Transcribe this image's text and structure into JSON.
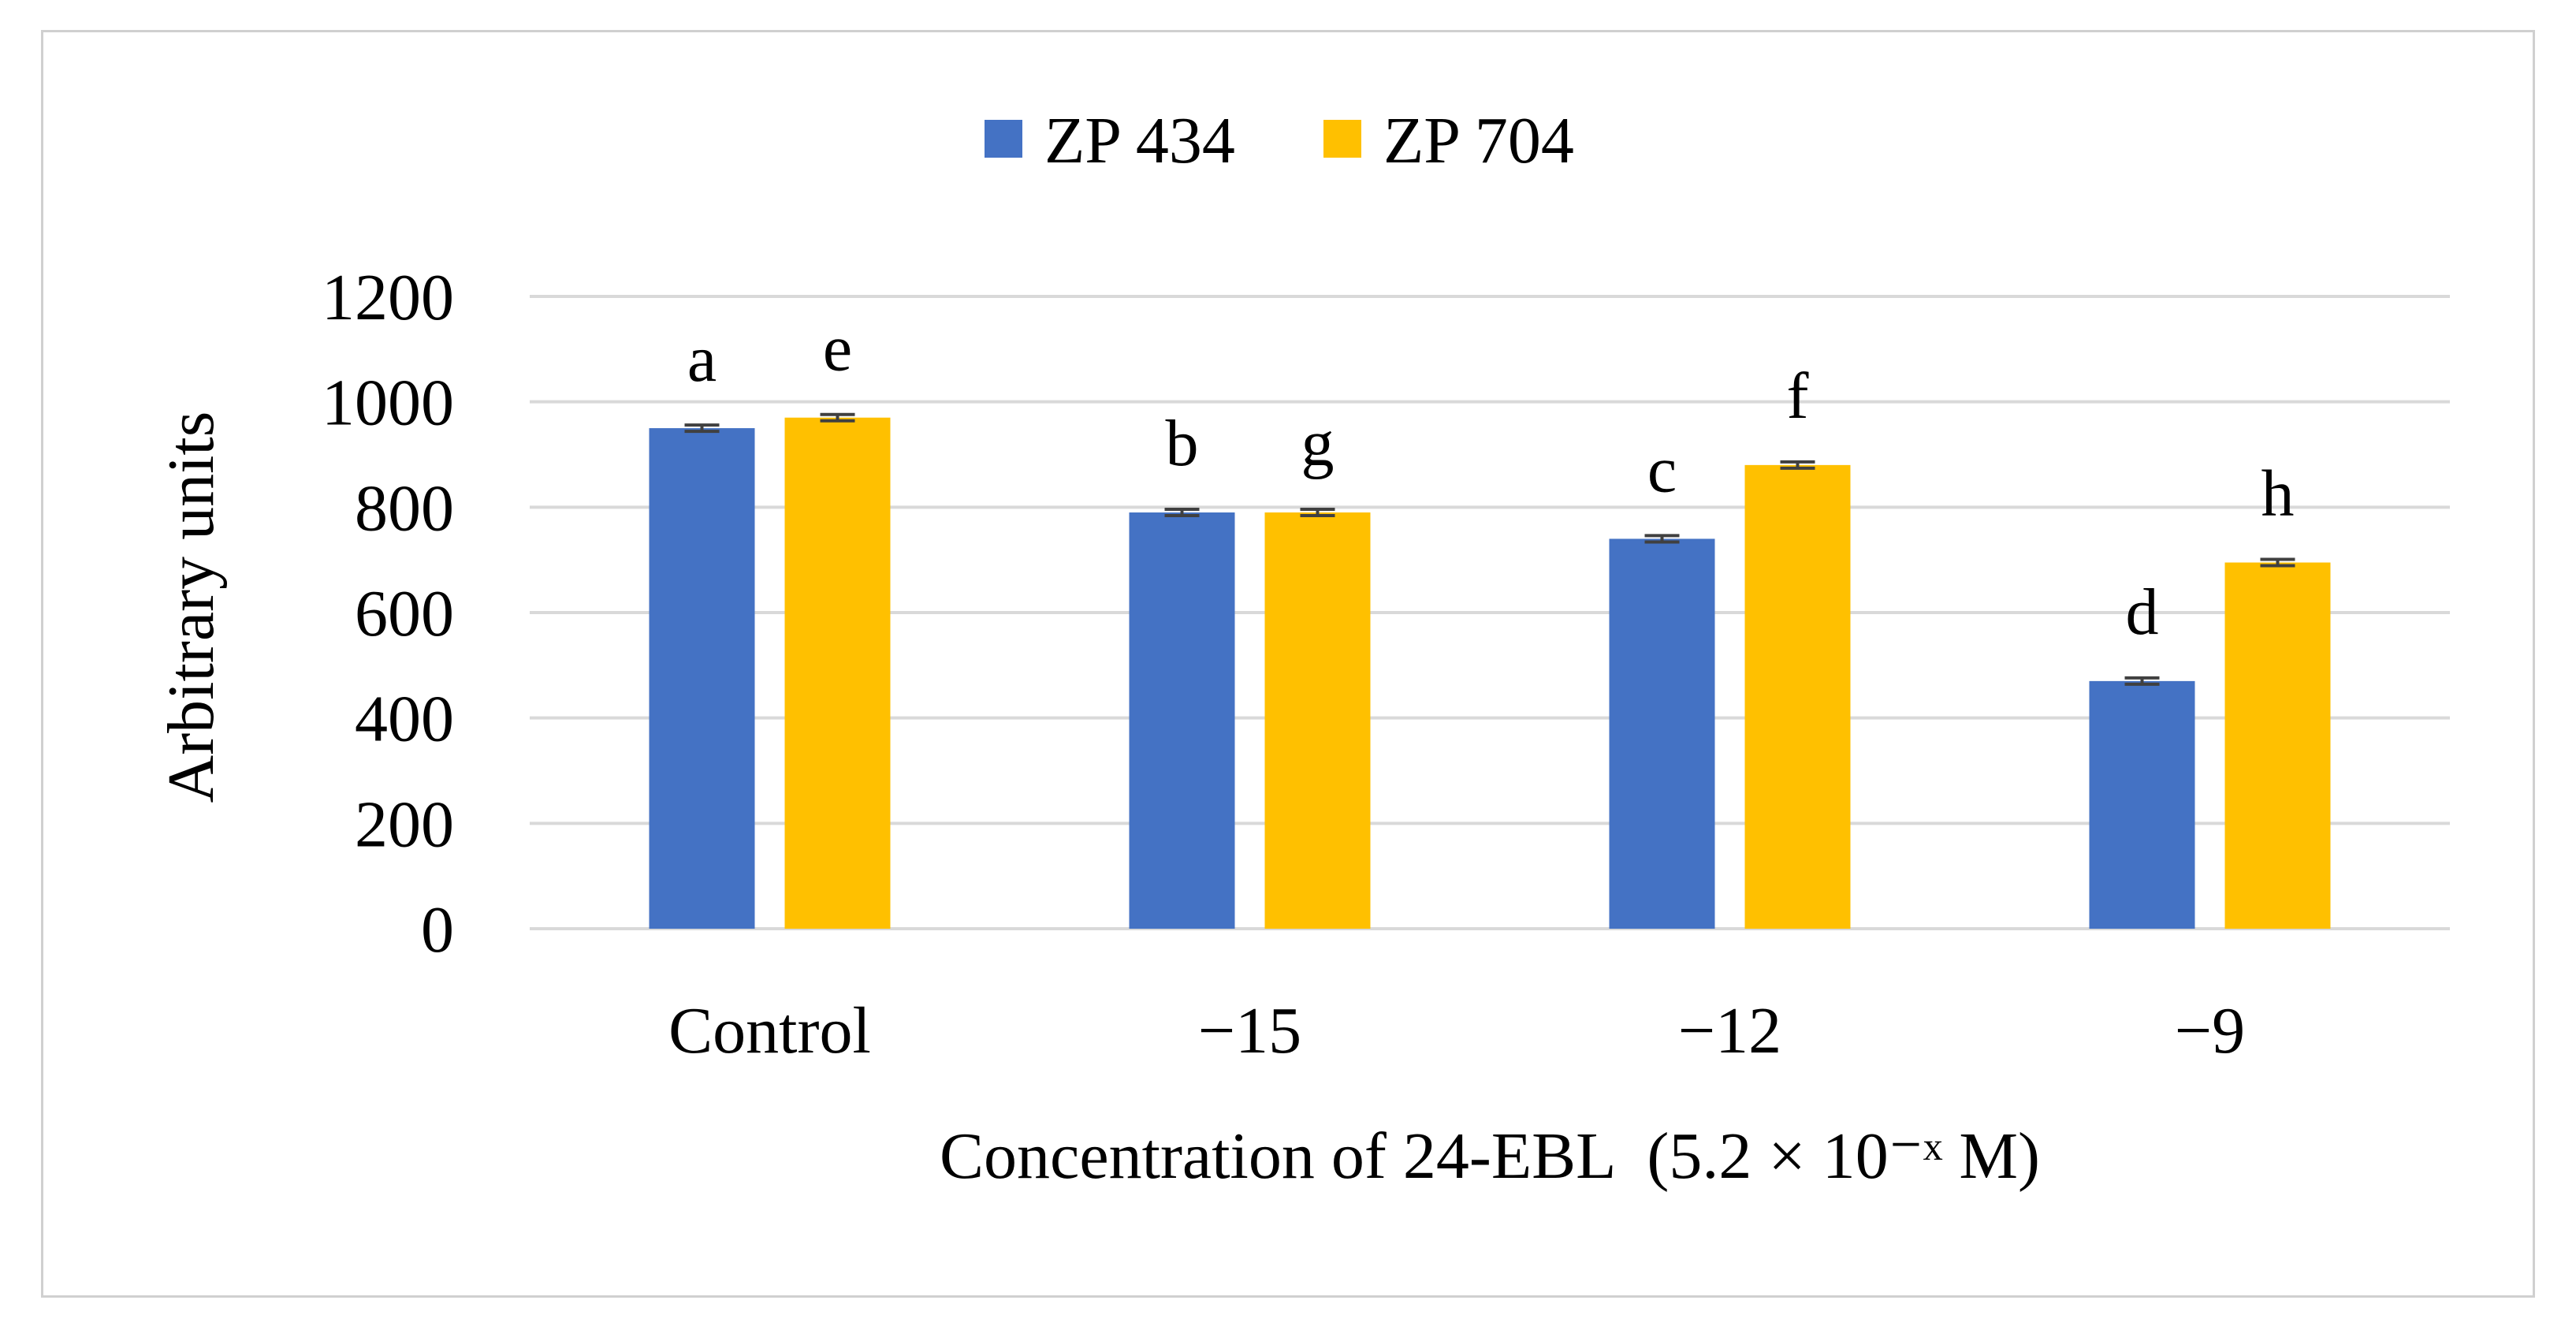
{
  "chart_data": {
    "type": "bar",
    "title": "",
    "categories": [
      "Control",
      "−15",
      "−12",
      "−9"
    ],
    "series": [
      {
        "name": "ZP 434",
        "color": "#4472C4",
        "values": [
          950,
          790,
          740,
          470
        ],
        "errors": [
          6,
          6,
          6,
          6
        ],
        "labels": [
          "a",
          "b",
          "c",
          "d"
        ]
      },
      {
        "name": "ZP 704",
        "color": "#FFC000",
        "values": [
          970,
          790,
          880,
          695
        ],
        "errors": [
          6,
          6,
          6,
          6
        ],
        "labels": [
          "e",
          "g",
          "f",
          "h"
        ]
      }
    ],
    "xlabel": "Concentration of 24-EBL  (5.2 × 10⁻ˣ M)",
    "ylabel": "Arbitrary units",
    "ylim": [
      0,
      1200
    ],
    "yticks": [
      0,
      200,
      400,
      600,
      800,
      1000,
      1200
    ],
    "grid": true,
    "legend_position": "top-center",
    "colors": {
      "grid": "#d9d9d9",
      "error_bar": "#404040",
      "text": "#000000"
    }
  }
}
